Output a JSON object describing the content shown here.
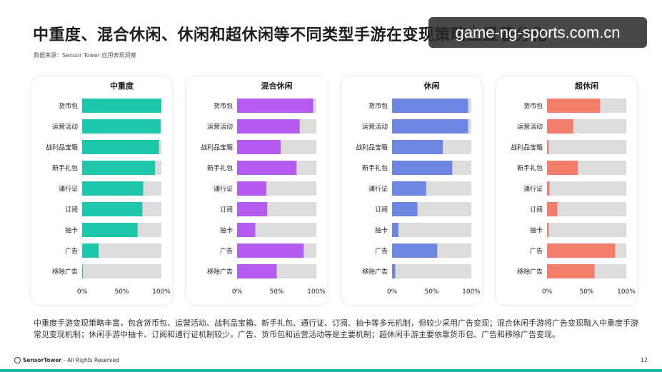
{
  "page": {
    "title": "中重度、混合休闲、休闲和超休闲等不同类型手游在变现策略上显著分化",
    "source": "数据来源：Sensor Tower 应用表现洞察",
    "watermark": "game-ng-sports.com.cn",
    "description": "中重度手游变现策略丰富，包含货币包、运营活动、战利品宝箱、新手礼包、通行证、订阅、抽卡等多元机制，但较少采用广告变现；混合休闲手游将广告变现融入中重度手游常见变现机制；休闲手游中抽卡、订阅和通行证机制较少，广告、货币包和运营活动等是主要机制；超休闲手游主要依靠货币包、广告和移除广告变现。",
    "footer_brand": "SensorTower",
    "footer_rights": " - All Rights Reserved",
    "page_number": "12"
  },
  "chart_data": [
    {
      "type": "bar",
      "orientation": "horizontal",
      "title": "中重度",
      "color": "#1ec7a9",
      "track_color": "#dcdcdc",
      "categories": [
        "货币包",
        "运营活动",
        "战利品宝箱",
        "新手礼包",
        "通行证",
        "订阅",
        "抽卡",
        "广告",
        "移除广告"
      ],
      "values": [
        100,
        99,
        97,
        92,
        77,
        76,
        70,
        21,
        1
      ],
      "xlim": [
        0,
        100
      ],
      "ticks": [
        "0%",
        "50%",
        "100%"
      ]
    },
    {
      "type": "bar",
      "orientation": "horizontal",
      "title": "混合休闲",
      "color": "#b45cf0",
      "track_color": "#dcdcdc",
      "categories": [
        "货币包",
        "运营活动",
        "战利品宝箱",
        "新手礼包",
        "通行证",
        "订阅",
        "抽卡",
        "广告",
        "移除广告"
      ],
      "values": [
        96,
        79,
        55,
        75,
        37,
        38,
        23,
        84,
        50
      ],
      "xlim": [
        0,
        100
      ],
      "ticks": [
        "0%",
        "50%",
        "100%"
      ]
    },
    {
      "type": "bar",
      "orientation": "horizontal",
      "title": "休闲",
      "color": "#6b86e3",
      "track_color": "#dcdcdc",
      "categories": [
        "货币包",
        "运营活动",
        "战利品宝箱",
        "新手礼包",
        "通行证",
        "订阅",
        "抽卡",
        "广告",
        "移除广告"
      ],
      "values": [
        96,
        96,
        64,
        76,
        43,
        32,
        8,
        57,
        4
      ],
      "xlim": [
        0,
        100
      ],
      "ticks": [
        "0%",
        "50%",
        "100%"
      ]
    },
    {
      "type": "bar",
      "orientation": "horizontal",
      "title": "超休闲",
      "color": "#f47c6b",
      "track_color": "#dcdcdc",
      "categories": [
        "货币包",
        "运营活动",
        "战利品宝箱",
        "新手礼包",
        "通行证",
        "订阅",
        "抽卡",
        "广告",
        "移除广告"
      ],
      "values": [
        67,
        33,
        2,
        39,
        3,
        13,
        2,
        86,
        60
      ],
      "xlim": [
        0,
        100
      ],
      "ticks": [
        "0%",
        "50%",
        "100%"
      ]
    }
  ]
}
